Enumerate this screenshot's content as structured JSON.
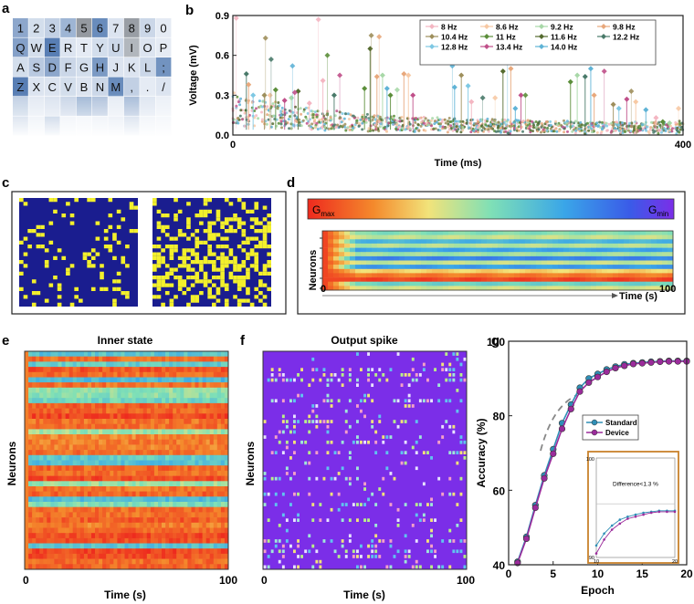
{
  "panels": {
    "a": {
      "label": "a",
      "keyboard": [
        [
          "1",
          "2",
          "3",
          "4",
          "5",
          "6",
          "7",
          "8",
          "9",
          "0"
        ],
        [
          "Q",
          "W",
          "E",
          "R",
          "T",
          "Y",
          "U",
          "I",
          "O",
          "P"
        ],
        [
          "A",
          "S",
          "D",
          "F",
          "G",
          "H",
          "J",
          "K",
          "L",
          ";"
        ],
        [
          "Z",
          "X",
          "C",
          "V",
          "B",
          "N",
          "M",
          ",",
          ".",
          "/"
        ]
      ],
      "key_shades": [
        [
          0.55,
          0.15,
          0.25,
          0.45,
          0.9,
          0.75,
          0.1,
          0.85,
          0.2,
          0.05
        ],
        [
          0.6,
          0.15,
          0.85,
          0.1,
          0.05,
          0.15,
          0.2,
          0.6,
          0.1,
          0.05
        ],
        [
          0.15,
          0.3,
          0.55,
          0.2,
          0.15,
          0.65,
          0.1,
          0.1,
          0.2,
          0.7
        ],
        [
          0.85,
          0.1,
          0.1,
          0.15,
          0.1,
          0.2,
          0.75,
          0.25,
          0.05,
          0.1
        ]
      ],
      "key_colors": {
        "light": "#eef2f8",
        "blue": "#3d6aa8",
        "grey": "#8a8f96"
      }
    },
    "b": {
      "label": "b",
      "chart_data": {
        "type": "scatter",
        "xlabel": "Time (ms)",
        "ylabel": "Voltage (mV)",
        "xlim": [
          0,
          400
        ],
        "ylim": [
          0,
          0.9
        ],
        "xticks": [
          0,
          400
        ],
        "yticks": [
          0.0,
          0.3,
          0.6,
          0.9
        ],
        "legend": [
          {
            "name": "8 Hz",
            "color": "#f4b6c2"
          },
          {
            "name": "8.6 Hz",
            "color": "#f7c9a4"
          },
          {
            "name": "9.2 Hz",
            "color": "#a8d8a8"
          },
          {
            "name": "9.8 Hz",
            "color": "#e8a87c"
          },
          {
            "name": "10.4 Hz",
            "color": "#9e8f5c"
          },
          {
            "name": "11 Hz",
            "color": "#5b8e3a"
          },
          {
            "name": "11.6 Hz",
            "color": "#556b2f"
          },
          {
            "name": "12.2 Hz",
            "color": "#4a7a6a"
          },
          {
            "name": "12.8 Hz",
            "color": "#7ec8e3"
          },
          {
            "name": "13.4 Hz",
            "color": "#c0508a"
          },
          {
            "name": "14.0 Hz",
            "color": "#5fb3d6"
          }
        ],
        "peaks": [
          {
            "x": 12,
            "y": 0.46,
            "c": 7
          },
          {
            "x": 14,
            "y": 0.38,
            "c": 3
          },
          {
            "x": 18,
            "y": 0.3,
            "c": 8
          },
          {
            "x": 28,
            "y": 0.3,
            "c": 4
          },
          {
            "x": 33,
            "y": 0.3,
            "c": 1
          },
          {
            "x": 38,
            "y": 0.34,
            "c": 5
          },
          {
            "x": 46,
            "y": 0.26,
            "c": 9
          },
          {
            "x": 52,
            "y": 0.28,
            "c": 2
          },
          {
            "x": 58,
            "y": 0.33,
            "c": 6
          },
          {
            "x": 68,
            "y": 0.24,
            "c": 0
          },
          {
            "x": 80,
            "y": 0.41,
            "c": 0
          },
          {
            "x": 90,
            "y": 0.3,
            "c": 7
          },
          {
            "x": 117,
            "y": 0.35,
            "c": 5
          },
          {
            "x": 122,
            "y": 0.65,
            "c": 6
          },
          {
            "x": 128,
            "y": 0.44,
            "c": 3
          },
          {
            "x": 133,
            "y": 0.45,
            "c": 2
          },
          {
            "x": 137,
            "y": 0.35,
            "c": 10
          },
          {
            "x": 140,
            "y": 0.3,
            "c": 5
          },
          {
            "x": 152,
            "y": 0.46,
            "c": 3
          },
          {
            "x": 156,
            "y": 0.45,
            "c": 1
          },
          {
            "x": 160,
            "y": 0.3,
            "c": 9
          },
          {
            "x": 197,
            "y": 0.36,
            "c": 10
          },
          {
            "x": 203,
            "y": 0.45,
            "c": 4
          },
          {
            "x": 209,
            "y": 0.37,
            "c": 8
          },
          {
            "x": 212,
            "y": 0.25,
            "c": 0
          },
          {
            "x": 240,
            "y": 0.48,
            "c": 6
          },
          {
            "x": 247,
            "y": 0.5,
            "c": 3
          },
          {
            "x": 251,
            "y": 0.2,
            "c": 10
          },
          {
            "x": 256,
            "y": 0.3,
            "c": 9
          },
          {
            "x": 300,
            "y": 0.4,
            "c": 5
          },
          {
            "x": 306,
            "y": 0.45,
            "c": 2
          },
          {
            "x": 313,
            "y": 0.44,
            "c": 7
          },
          {
            "x": 318,
            "y": 0.5,
            "c": 10
          },
          {
            "x": 321,
            "y": 0.3,
            "c": 3
          },
          {
            "x": 338,
            "y": 0.23,
            "c": 4
          },
          {
            "x": 343,
            "y": 0.2,
            "c": 8
          },
          {
            "x": 350,
            "y": 0.27,
            "c": 9
          },
          {
            "x": 358,
            "y": 0.25,
            "c": 1
          },
          {
            "x": 367,
            "y": 0.19,
            "c": 10
          },
          {
            "x": 376,
            "y": 0.13,
            "c": 0
          },
          {
            "x": 382,
            "y": 0.1,
            "c": 5
          },
          {
            "x": 388,
            "y": 0.09,
            "c": 2
          }
        ],
        "extra_points": [
          {
            "x": 3,
            "y": 0.88,
            "c": 0
          },
          {
            "x": 29,
            "y": 0.73,
            "c": 4
          },
          {
            "x": 34,
            "y": 0.57,
            "c": 7
          },
          {
            "x": 53,
            "y": 0.52,
            "c": 10
          },
          {
            "x": 55,
            "y": 0.32,
            "c": 9
          },
          {
            "x": 76,
            "y": 0.87,
            "c": 0
          },
          {
            "x": 84,
            "y": 0.6,
            "c": 5
          },
          {
            "x": 95,
            "y": 0.45,
            "c": 9
          },
          {
            "x": 123,
            "y": 0.75,
            "c": 4
          },
          {
            "x": 130,
            "y": 0.74,
            "c": 3
          },
          {
            "x": 146,
            "y": 0.34,
            "c": 2
          },
          {
            "x": 195,
            "y": 0.52,
            "c": 10
          },
          {
            "x": 222,
            "y": 0.28,
            "c": 7
          },
          {
            "x": 233,
            "y": 0.28,
            "c": 1
          },
          {
            "x": 244,
            "y": 0.62,
            "c": 10
          },
          {
            "x": 260,
            "y": 0.3,
            "c": 5
          },
          {
            "x": 330,
            "y": 0.48,
            "c": 9
          },
          {
            "x": 354,
            "y": 0.33,
            "c": 4
          },
          {
            "x": 396,
            "y": 0.2,
            "c": 1
          }
        ]
      }
    },
    "c": {
      "label": "c",
      "grid_colors": {
        "bg": "#1a1d8f",
        "on": "#f3f02c"
      },
      "left_density": 0.12,
      "right_density": 0.45
    },
    "d": {
      "label": "d",
      "colorbar": {
        "gmax": "G",
        "gmax_sub": "max",
        "gmin": "G",
        "gmin_sub": "min"
      },
      "ylabel": "Neurons",
      "xlabel": "Time (s)",
      "xticks": [
        "0",
        "100"
      ],
      "rows": [
        0.5,
        0.4,
        0.65,
        0.42,
        0.7,
        0.45,
        0.78,
        0.4,
        0.72,
        0.3,
        0.15,
        0.05,
        0.55,
        0.38
      ],
      "first_column_value": 0.05
    },
    "e": {
      "label": "e",
      "title": "Inner state",
      "ylabel": "Neurons",
      "xlabel": "Time (s)",
      "xticks": [
        "0",
        "100"
      ]
    },
    "f": {
      "label": "f",
      "title": "Output spike",
      "ylabel": "Neurons",
      "xlabel": "Time (s)",
      "xticks": [
        "0",
        "100"
      ]
    },
    "g": {
      "label": "g",
      "chart_data": {
        "type": "line",
        "xlabel": "Epoch",
        "ylabel": "Accuracy (%)",
        "xlim": [
          0,
          20
        ],
        "ylim": [
          40,
          100
        ],
        "xticks": [
          0,
          5,
          10,
          15,
          20
        ],
        "yticks": [
          40,
          60,
          80,
          100
        ],
        "x": [
          1,
          2,
          3,
          4,
          5,
          6,
          7,
          8,
          9,
          10,
          11,
          12,
          13,
          14,
          15,
          16,
          17,
          18,
          19,
          20
        ],
        "series": [
          {
            "name": "Standard",
            "color": "#2f8fb6",
            "values": [
              40.8,
              47.5,
              56.0,
              64.0,
              71.0,
              78.0,
              83.0,
              87.5,
              90.0,
              91.2,
              92.4,
              93.2,
              93.8,
              94.1,
              94.3,
              94.5,
              94.6,
              94.7,
              94.7,
              94.7
            ]
          },
          {
            "name": "Device",
            "color": "#9b2b9b",
            "values": [
              40.5,
              47.0,
              55.3,
              63.2,
              69.8,
              76.5,
              81.8,
              86.5,
              88.9,
              90.4,
              91.8,
              92.8,
              93.4,
              93.9,
              94.1,
              94.3,
              94.5,
              94.6,
              94.6,
              94.6
            ]
          }
        ],
        "inset": {
          "annotation": "Difference<1.3 %",
          "ytick_top": "100",
          "ytick_bottom": "90",
          "xtick_left": "10",
          "xtick_right": "20"
        }
      }
    }
  }
}
